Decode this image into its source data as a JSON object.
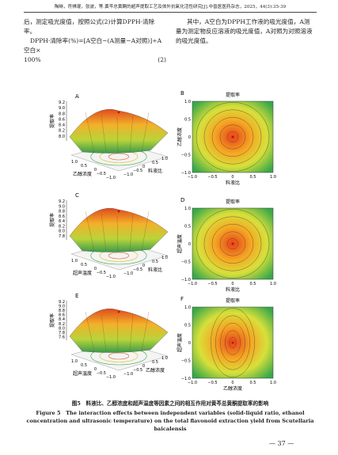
{
  "header": {
    "citation": "陶晰，符祺琨，张波，等.黄芩总黄酮的超声提取工艺及体外抗氧化活性研究[J].中兽医医药杂志，2025，44(3):35-39"
  },
  "body": {
    "left": [
      "后，测定吸光度值，按照公式(2)计算DPPH·清除率。",
      "DPPH·清除率(%)=[A空白−(A测量−A对照)]÷A空白×",
      "100%"
    ],
    "equation_number": "(2)",
    "right": "其中，A空白为DPPH工作液的吸光度值，A测量为测定物反应溶液的吸光度值，A对照为对照溶液的吸光度值。"
  },
  "figure": {
    "panels": [
      {
        "letter": "A",
        "kind": "surface",
        "z_label": "提取率",
        "z_ticks": [
          "9.2",
          "9.0",
          "8.8",
          "8.6",
          "8.4",
          "8.2",
          "8.0"
        ],
        "x_label": "乙醇浓度",
        "y_label": "料液比",
        "x_ticks": [
          "1.0",
          "0.5",
          "0",
          "−0.5",
          "−1.0"
        ],
        "y_ticks": [
          "−1.0",
          "−0.5",
          "0",
          "0.5",
          "1.0"
        ]
      },
      {
        "letter": "B",
        "kind": "contour",
        "title": "提取率",
        "x_label": "料液比",
        "y_label": "乙醇浓度",
        "x_ticks": [
          "−1.0",
          "−0.5",
          "0",
          "0.5",
          "1.0"
        ],
        "y_ticks": [
          "1.0",
          "0.5",
          "0",
          "−0.5",
          "−1.0"
        ]
      },
      {
        "letter": "C",
        "kind": "surface",
        "z_label": "提取率",
        "z_ticks": [
          "9.2",
          "9.0",
          "8.8",
          "8.6",
          "8.4",
          "8.2",
          "8.0",
          "7.8"
        ],
        "x_label": "超声温度",
        "y_label": "料液比",
        "x_ticks": [
          "1.0",
          "0.5",
          "0",
          "−0.5",
          "−1.0"
        ],
        "y_ticks": [
          "−1.0",
          "−0.5",
          "0",
          "0.5",
          "1.0"
        ]
      },
      {
        "letter": "D",
        "kind": "contour",
        "title": "提取率",
        "x_label": "料液比",
        "y_label": "超声温度",
        "x_ticks": [
          "−1.0",
          "−0.5",
          "0",
          "0.5",
          "1.0"
        ],
        "y_ticks": [
          "1.0",
          "0.5",
          "0",
          "−0.5",
          "−1.0"
        ]
      },
      {
        "letter": "E",
        "kind": "surface",
        "z_label": "提取率",
        "z_ticks": [
          "9.2",
          "9.0",
          "8.8",
          "8.6",
          "8.4",
          "8.2",
          "8.0",
          "7.8",
          "7.6"
        ],
        "x_label": "超声温度",
        "y_label": "乙醇浓度",
        "x_ticks": [
          "1.0",
          "0.5",
          "0",
          "−0.5",
          "−1.0"
        ],
        "y_ticks": [
          "−1.0",
          "−0.5",
          "0",
          "0.5",
          "1.0"
        ]
      },
      {
        "letter": "F",
        "kind": "contour",
        "title": "提取率",
        "x_label": "乙醇浓度",
        "y_label": "超声温度",
        "x_ticks": [
          "−1.0",
          "−0.5",
          "0",
          "0.5",
          "1.0"
        ],
        "y_ticks": [
          "1.0",
          "0.5",
          "0",
          "−0.5",
          "−1.0"
        ]
      }
    ],
    "caption_cn": "图5　料液比、乙醇浓度和超声温度等因素之间的相互作用对黄芩总黄酮提取率的影响",
    "caption_en": "Figure 5　The interaction effects between independent variables (solid-liquid ratio, ethanol concentration and ultrasonic temperature) on the total flavonoid extraction yield from Scutellaria baicalensis"
  },
  "footer": {
    "page": "— 37 —"
  }
}
